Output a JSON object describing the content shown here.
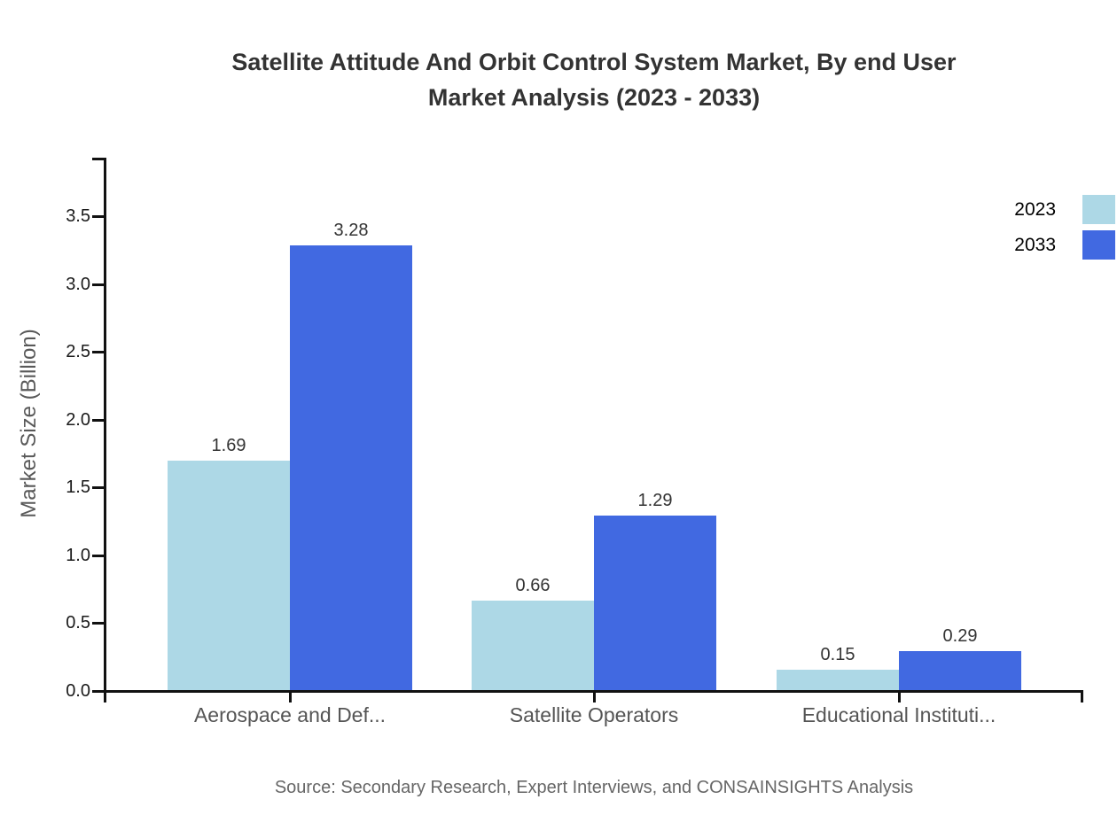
{
  "title": {
    "lines": [
      "Satellite Attitude And Orbit Control System Market, By end User",
      "Market Analysis (2023 - 2033)"
    ]
  },
  "chart_data": {
    "type": "bar",
    "title": "Satellite Attitude And Orbit Control System Market, By end User Market Analysis (2023 - 2033)",
    "categories": [
      "Aerospace and Def...",
      "Satellite Operators",
      "Educational Instituti..."
    ],
    "series": [
      {
        "name": "2023",
        "color": "#ADD8E6",
        "values": [
          1.69,
          0.66,
          0.15
        ]
      },
      {
        "name": "2033",
        "color": "#4169E1",
        "values": [
          3.28,
          1.29,
          0.29
        ]
      }
    ],
    "data_labels": [
      [
        "1.69",
        "0.66",
        "0.15"
      ],
      [
        "3.28",
        "1.29",
        "0.29"
      ]
    ],
    "xlabel": "",
    "ylabel": "Market Size (Billion)",
    "ylim": [
      0,
      3.9
    ],
    "yticks": [
      0.0,
      0.5,
      1.0,
      1.5,
      2.0,
      2.5,
      3.0,
      3.5
    ],
    "ytick_labels": [
      "0.0",
      "0.5",
      "1.0",
      "1.5",
      "2.0",
      "2.5",
      "3.0",
      "3.5"
    ],
    "grid": false,
    "legend": {
      "position": "top-right",
      "entries": [
        "2023",
        "2033"
      ]
    },
    "source": "Source: Secondary Research, Expert Interviews, and CONSAINSIGHTS Analysis",
    "colors": {
      "series_2023": "#ADD8E6",
      "series_2033": "#4169E1",
      "axis": "#111111",
      "title_text": "#333333",
      "category_text": "#555555",
      "value_label_text": "#333333",
      "source_text": "#666666"
    }
  }
}
